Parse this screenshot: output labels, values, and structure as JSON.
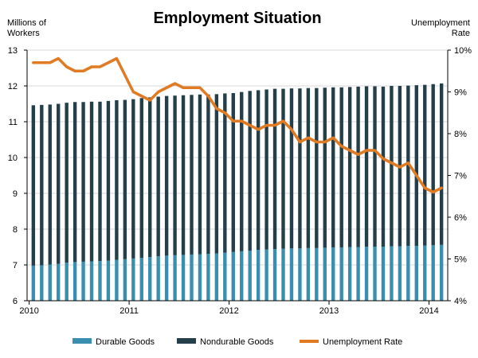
{
  "chart_data": {
    "type": "bar",
    "title": "Employment Situation",
    "ylabel_left": [
      "Millions of",
      "Workers"
    ],
    "ylabel_right": [
      "Unemployment",
      "Rate"
    ],
    "ylim_left": [
      6,
      13
    ],
    "ylim_right": [
      4,
      10
    ],
    "left_ticks": [
      "6",
      "7",
      "8",
      "9",
      "10",
      "11",
      "12",
      "13"
    ],
    "right_ticks": [
      "4%",
      "5%",
      "6%",
      "7%",
      "8%",
      "9%",
      "10%"
    ],
    "x_ticks": [
      "2010",
      "2011",
      "2012",
      "2013",
      "2014"
    ],
    "grid": true,
    "legend_position": "bottom",
    "x_months": [
      "2010-01",
      "2010-02",
      "2010-03",
      "2010-04",
      "2010-05",
      "2010-06",
      "2010-07",
      "2010-08",
      "2010-09",
      "2010-10",
      "2010-11",
      "2010-12",
      "2011-01",
      "2011-02",
      "2011-03",
      "2011-04",
      "2011-05",
      "2011-06",
      "2011-07",
      "2011-08",
      "2011-09",
      "2011-10",
      "2011-11",
      "2011-12",
      "2012-01",
      "2012-02",
      "2012-03",
      "2012-04",
      "2012-05",
      "2012-06",
      "2012-07",
      "2012-08",
      "2012-09",
      "2012-10",
      "2012-11",
      "2012-12",
      "2013-01",
      "2013-02",
      "2013-03",
      "2013-04",
      "2013-05",
      "2013-06",
      "2013-07",
      "2013-08",
      "2013-09",
      "2013-10",
      "2013-11",
      "2013-12",
      "2014-01",
      "2014-02"
    ],
    "series": [
      {
        "name": "Durable Goods",
        "kind": "stacked-bar",
        "color": "#3a8fb0",
        "values": [
          6.98,
          6.99,
          7.01,
          7.03,
          7.06,
          7.08,
          7.09,
          7.1,
          7.11,
          7.12,
          7.14,
          7.16,
          7.18,
          7.2,
          7.22,
          7.24,
          7.26,
          7.27,
          7.28,
          7.29,
          7.3,
          7.31,
          7.32,
          7.34,
          7.36,
          7.38,
          7.4,
          7.42,
          7.43,
          7.44,
          7.45,
          7.46,
          7.46,
          7.47,
          7.47,
          7.48,
          7.49,
          7.49,
          7.5,
          7.5,
          7.51,
          7.51,
          7.51,
          7.52,
          7.52,
          7.53,
          7.53,
          7.54,
          7.55,
          7.56
        ]
      },
      {
        "name": "Nondurable Goods",
        "kind": "stacked-bar",
        "color": "#243f4a",
        "values": [
          4.48,
          4.48,
          4.47,
          4.47,
          4.47,
          4.47,
          4.46,
          4.46,
          4.45,
          4.46,
          4.46,
          4.45,
          4.45,
          4.46,
          4.46,
          4.46,
          4.46,
          4.46,
          4.46,
          4.46,
          4.46,
          4.45,
          4.45,
          4.45,
          4.44,
          4.45,
          4.46,
          4.46,
          4.47,
          4.48,
          4.47,
          4.47,
          4.47,
          4.47,
          4.47,
          4.47,
          4.47,
          4.47,
          4.47,
          4.48,
          4.48,
          4.48,
          4.47,
          4.48,
          4.48,
          4.48,
          4.49,
          4.49,
          4.5,
          4.51
        ]
      },
      {
        "name": "Unemployment Rate",
        "kind": "line",
        "axis": "right",
        "color": "#e07b24",
        "values": [
          9.7,
          9.7,
          9.7,
          9.8,
          9.6,
          9.5,
          9.5,
          9.6,
          9.6,
          9.7,
          9.8,
          9.4,
          9.0,
          8.9,
          8.8,
          9.0,
          9.1,
          9.2,
          9.1,
          9.1,
          9.1,
          8.9,
          8.6,
          8.5,
          8.3,
          8.3,
          8.2,
          8.1,
          8.2,
          8.2,
          8.3,
          8.1,
          7.8,
          7.9,
          7.8,
          7.8,
          7.9,
          7.7,
          7.6,
          7.5,
          7.6,
          7.6,
          7.4,
          7.3,
          7.2,
          7.3,
          7.0,
          6.7,
          6.6,
          6.7
        ]
      }
    ]
  }
}
